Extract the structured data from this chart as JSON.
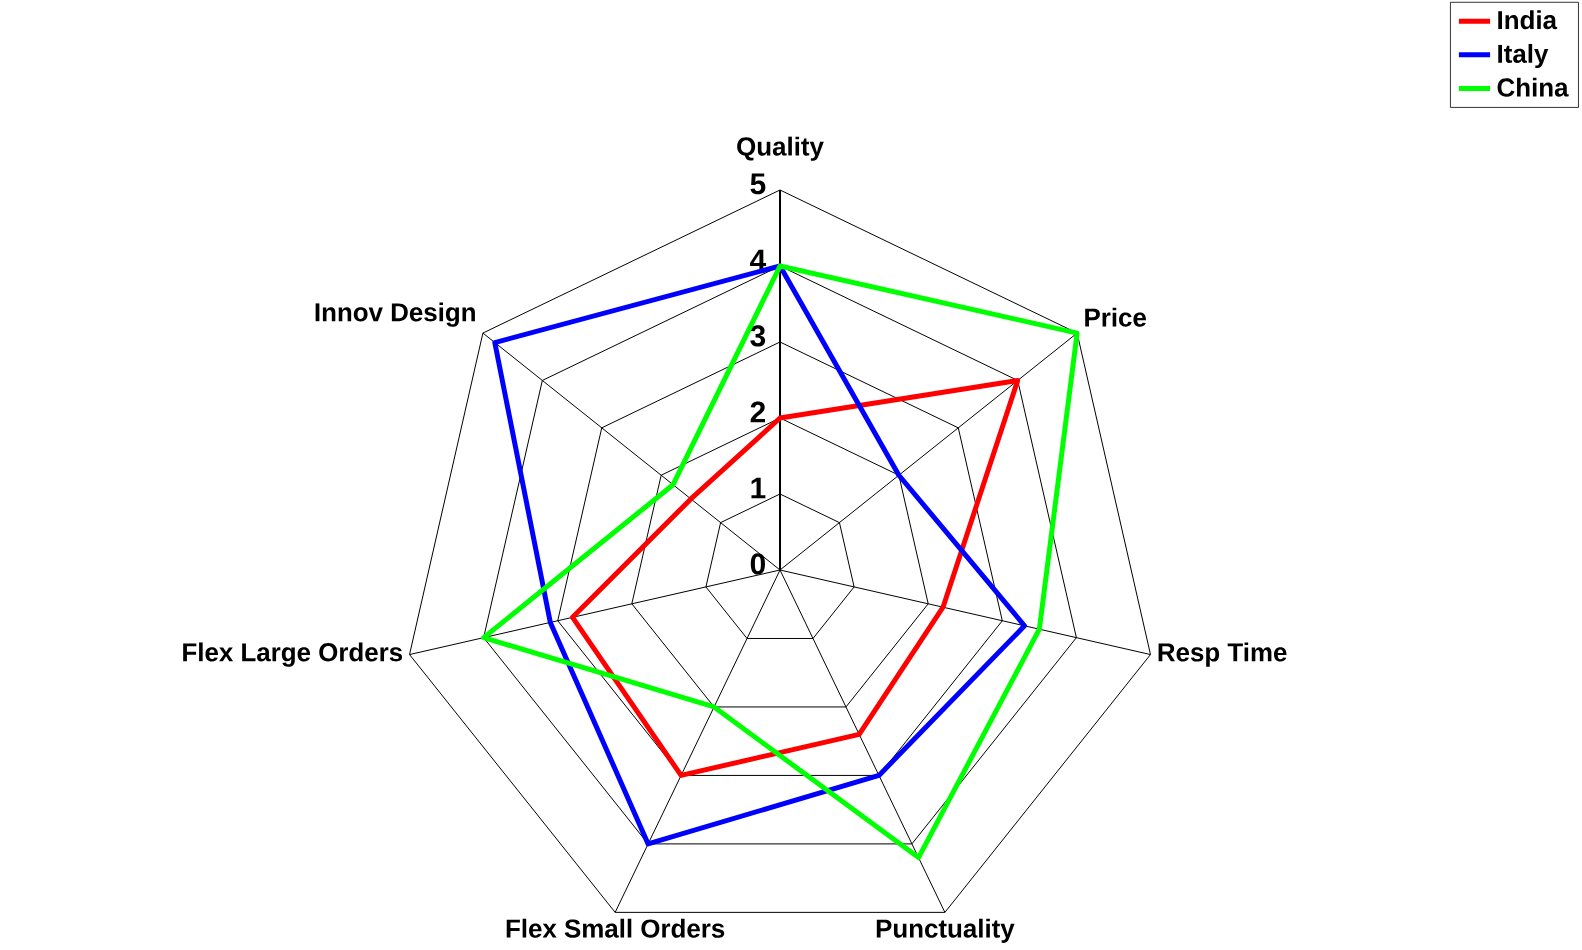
{
  "chart_data": {
    "type": "radar",
    "categories": [
      "Quality",
      "Price",
      "Resp Time",
      "Punctuality",
      "Flex Small Orders",
      "Flex Large Orders",
      "Innov Design"
    ],
    "series": [
      {
        "name": "India",
        "color": "#ff0000",
        "values": [
          2,
          4,
          2.2,
          2.4,
          3,
          2.8,
          1.5
        ]
      },
      {
        "name": "Italy",
        "color": "#0000ff",
        "values": [
          4,
          2,
          3.3,
          3,
          4,
          3.1,
          4.8
        ]
      },
      {
        "name": "China",
        "color": "#00ff00",
        "values": [
          4,
          5,
          3.5,
          4.2,
          2,
          4,
          1.8
        ]
      }
    ],
    "ylim": [
      0,
      5
    ],
    "yticks": [
      0,
      1,
      2,
      3,
      4,
      5
    ],
    "grid": true,
    "legend": "top right",
    "line_style": "solid"
  }
}
